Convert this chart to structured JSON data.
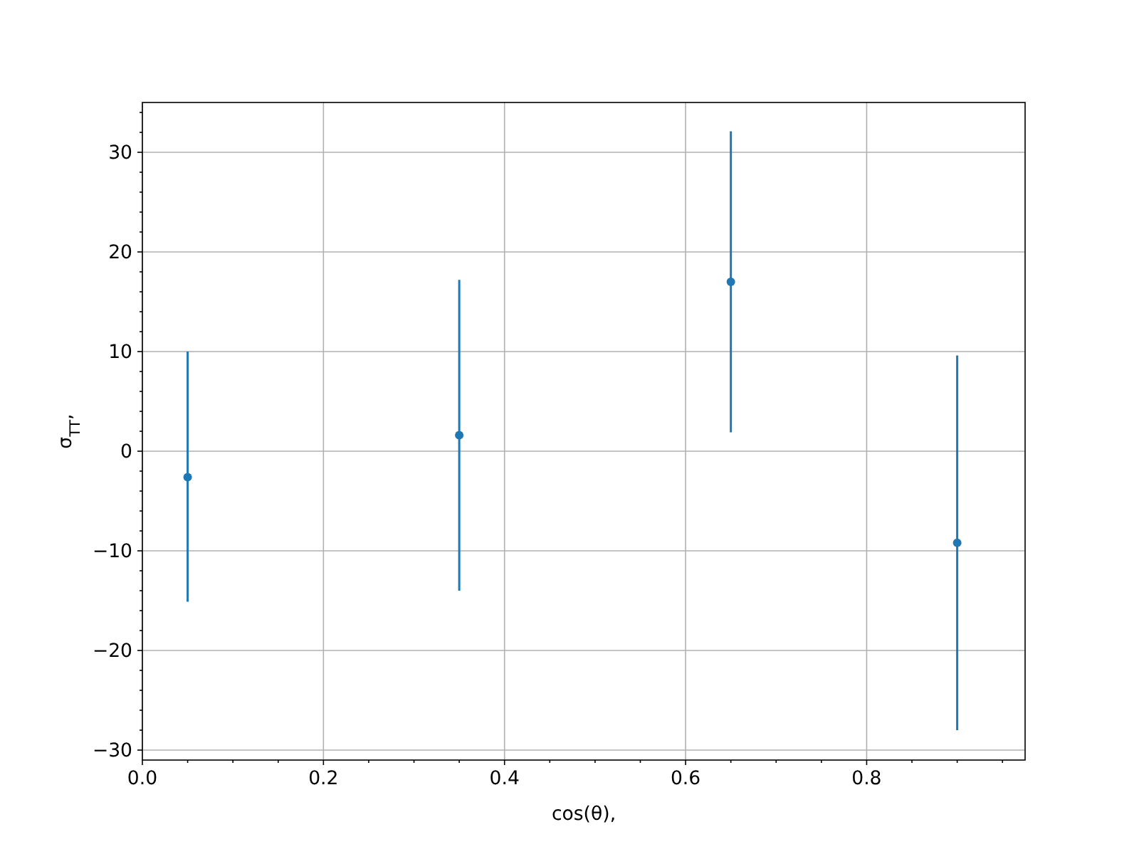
{
  "chart_data": {
    "type": "scatter",
    "xlabel": "cos(θ),",
    "ylabel": "σ$_{TT}$,",
    "x": [
      0.05,
      0.35,
      0.65,
      0.9
    ],
    "series": [
      {
        "color": "#1f77b4",
        "values": [
          -2.6,
          1.6,
          17.0,
          -9.2
        ],
        "errors": [
          [
            -15.1,
            10.0
          ],
          [
            -14.0,
            17.2
          ],
          [
            1.9,
            32.1
          ],
          [
            -28.0,
            9.6
          ]
        ]
      }
    ],
    "xlim": [
      0,
      0.975
    ],
    "ylim": [
      -31,
      35
    ],
    "xticks": [
      {
        "value": 0,
        "label": "0.0"
      },
      0.2,
      0.4,
      0.6,
      0.8,
      {
        "value": 0.05,
        "label": null
      },
      {
        "value": 0.1,
        "label": null
      },
      {
        "value": 0.15,
        "label": null
      },
      {
        "value": 0.25,
        "label": null
      },
      {
        "value": 0.3,
        "label": null
      },
      {
        "value": 0.35,
        "label": null
      },
      {
        "value": 0.45,
        "label": null
      },
      {
        "value": 0.5,
        "label": null
      },
      {
        "value": 0.55,
        "label": null
      },
      {
        "value": 0.65,
        "label": null
      },
      {
        "value": 0.7,
        "label": null
      },
      {
        "value": 0.75,
        "label": null
      },
      {
        "value": 0.85,
        "label": null
      },
      {
        "value": 0.9,
        "label": null
      },
      {
        "value": 0.95,
        "label": null
      }
    ],
    "yticks": [
      -30,
      -20,
      -10,
      0,
      10,
      20,
      30,
      {
        "value": -28,
        "label": null
      },
      {
        "value": -26,
        "label": null
      },
      {
        "value": -24,
        "label": null
      },
      {
        "value": -22,
        "label": null
      },
      {
        "value": -18,
        "label": null
      },
      {
        "value": -16,
        "label": null
      },
      {
        "value": -14,
        "label": null
      },
      {
        "value": -12,
        "label": null
      },
      {
        "value": -8,
        "label": null
      },
      {
        "value": -6,
        "label": null
      },
      {
        "value": -4,
        "label": null
      },
      {
        "value": -2,
        "label": null
      },
      {
        "value": 2,
        "label": null
      },
      {
        "value": 4,
        "label": null
      },
      {
        "value": 6,
        "label": null
      },
      {
        "value": 8,
        "label": null
      },
      {
        "value": 12,
        "label": null
      },
      {
        "value": 14,
        "label": null
      },
      {
        "value": 16,
        "label": null
      },
      {
        "value": 18,
        "label": null
      },
      {
        "value": 22,
        "label": null
      },
      {
        "value": 24,
        "label": null
      },
      {
        "value": 26,
        "label": null
      },
      {
        "value": 28,
        "label": null
      },
      {
        "value": 32,
        "label": null
      },
      {
        "value": 34,
        "label": null
      }
    ],
    "grid": true,
    "marker": "circle"
  }
}
